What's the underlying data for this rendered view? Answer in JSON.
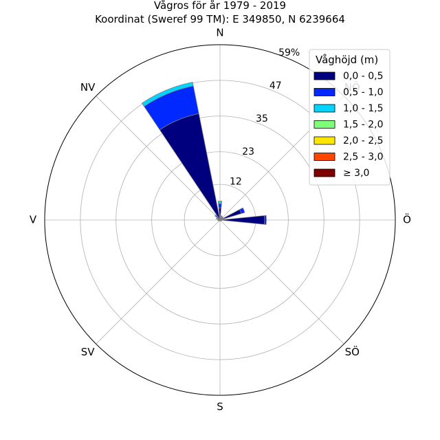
{
  "chart_data": {
    "type": "polar-bar",
    "title": "Vågros för år 1979 - 2019",
    "subtitle": "Koordinat (Sweref 99 TM): E 349850, N 6239664",
    "direction_labels": [
      {
        "label": "N",
        "angle": 0
      },
      {
        "label": "NV",
        "angle": 315
      },
      {
        "label": "V",
        "angle": 270
      },
      {
        "label": "SV",
        "angle": 225
      },
      {
        "label": "S",
        "angle": 180
      },
      {
        "label": "SÖ",
        "angle": 135
      },
      {
        "label": "Ö",
        "angle": 90
      },
      {
        "label": "NÖ",
        "angle": 45
      }
    ],
    "radial_axis": {
      "max": 59,
      "ticks": [
        12,
        23,
        35,
        47,
        59
      ],
      "tick_labels": [
        "12",
        "23",
        "35",
        "47",
        "59%"
      ]
    },
    "legend": {
      "title": "Våghöjd (m)",
      "placement": "top-right"
    },
    "series": [
      {
        "name": "0,0 - 0,5",
        "color": "#00007f"
      },
      {
        "name": "0,5 - 1,0",
        "color": "#0028ff"
      },
      {
        "name": "1,0 - 1,5",
        "color": "#00d4ff"
      },
      {
        "name": "1,5 - 2,0",
        "color": "#7dff7a"
      },
      {
        "name": "2,0 - 2,5",
        "color": "#ffe600"
      },
      {
        "name": "2,5 - 3,0",
        "color": "#ff4600"
      },
      {
        "name": "≥ 3,0",
        "color": "#7f0000"
      }
    ],
    "sectors": [
      {
        "direction": 337.5,
        "width": 22.5,
        "values": [
          36.5,
          9.5,
          1.3,
          0,
          0,
          0,
          0
        ]
      },
      {
        "direction": 0,
        "width": 11.25,
        "values": [
          4.0,
          1.5,
          0.6,
          0.3,
          0,
          0,
          0
        ]
      },
      {
        "direction": 22.5,
        "width": 11.25,
        "values": [
          1.2,
          0.3,
          0,
          0,
          0,
          0,
          0
        ]
      },
      {
        "direction": 45,
        "width": 11.25,
        "values": [
          1.0,
          0.3,
          0,
          0,
          0,
          0,
          0
        ]
      },
      {
        "direction": 67.5,
        "width": 11.25,
        "values": [
          7.5,
          1.2,
          0,
          0,
          0,
          0,
          0
        ]
      },
      {
        "direction": 90,
        "width": 11.25,
        "values": [
          15.0,
          0.6,
          0,
          0,
          0,
          0,
          0
        ]
      },
      {
        "direction": 112.5,
        "width": 11.25,
        "values": [
          0.6,
          0,
          0,
          0,
          0,
          0,
          0
        ]
      },
      {
        "direction": 135,
        "width": 11.25,
        "values": [
          0.3,
          0,
          0,
          0,
          0,
          0,
          0
        ]
      },
      {
        "direction": 157.5,
        "width": 11.25,
        "values": [
          0.3,
          0,
          0,
          0,
          0,
          0,
          0
        ]
      },
      {
        "direction": 180,
        "width": 11.25,
        "values": [
          0.3,
          0,
          0,
          0,
          0,
          0,
          0
        ]
      },
      {
        "direction": 202.5,
        "width": 11.25,
        "values": [
          0.3,
          0,
          0,
          0,
          0,
          0,
          0
        ]
      },
      {
        "direction": 225,
        "width": 11.25,
        "values": [
          0.4,
          0,
          0,
          0,
          0,
          0,
          0
        ]
      },
      {
        "direction": 247.5,
        "width": 11.25,
        "values": [
          0.5,
          0.1,
          0,
          0,
          0,
          0,
          0
        ]
      },
      {
        "direction": 270,
        "width": 11.25,
        "values": [
          0.6,
          0.2,
          0,
          0,
          0,
          0,
          0
        ]
      },
      {
        "direction": 292.5,
        "width": 11.25,
        "values": [
          1.0,
          0.3,
          0,
          0,
          0,
          0,
          0
        ]
      },
      {
        "direction": 315,
        "width": 11.25,
        "values": [
          1.5,
          0.5,
          0.2,
          0,
          0,
          0,
          0
        ]
      }
    ]
  }
}
